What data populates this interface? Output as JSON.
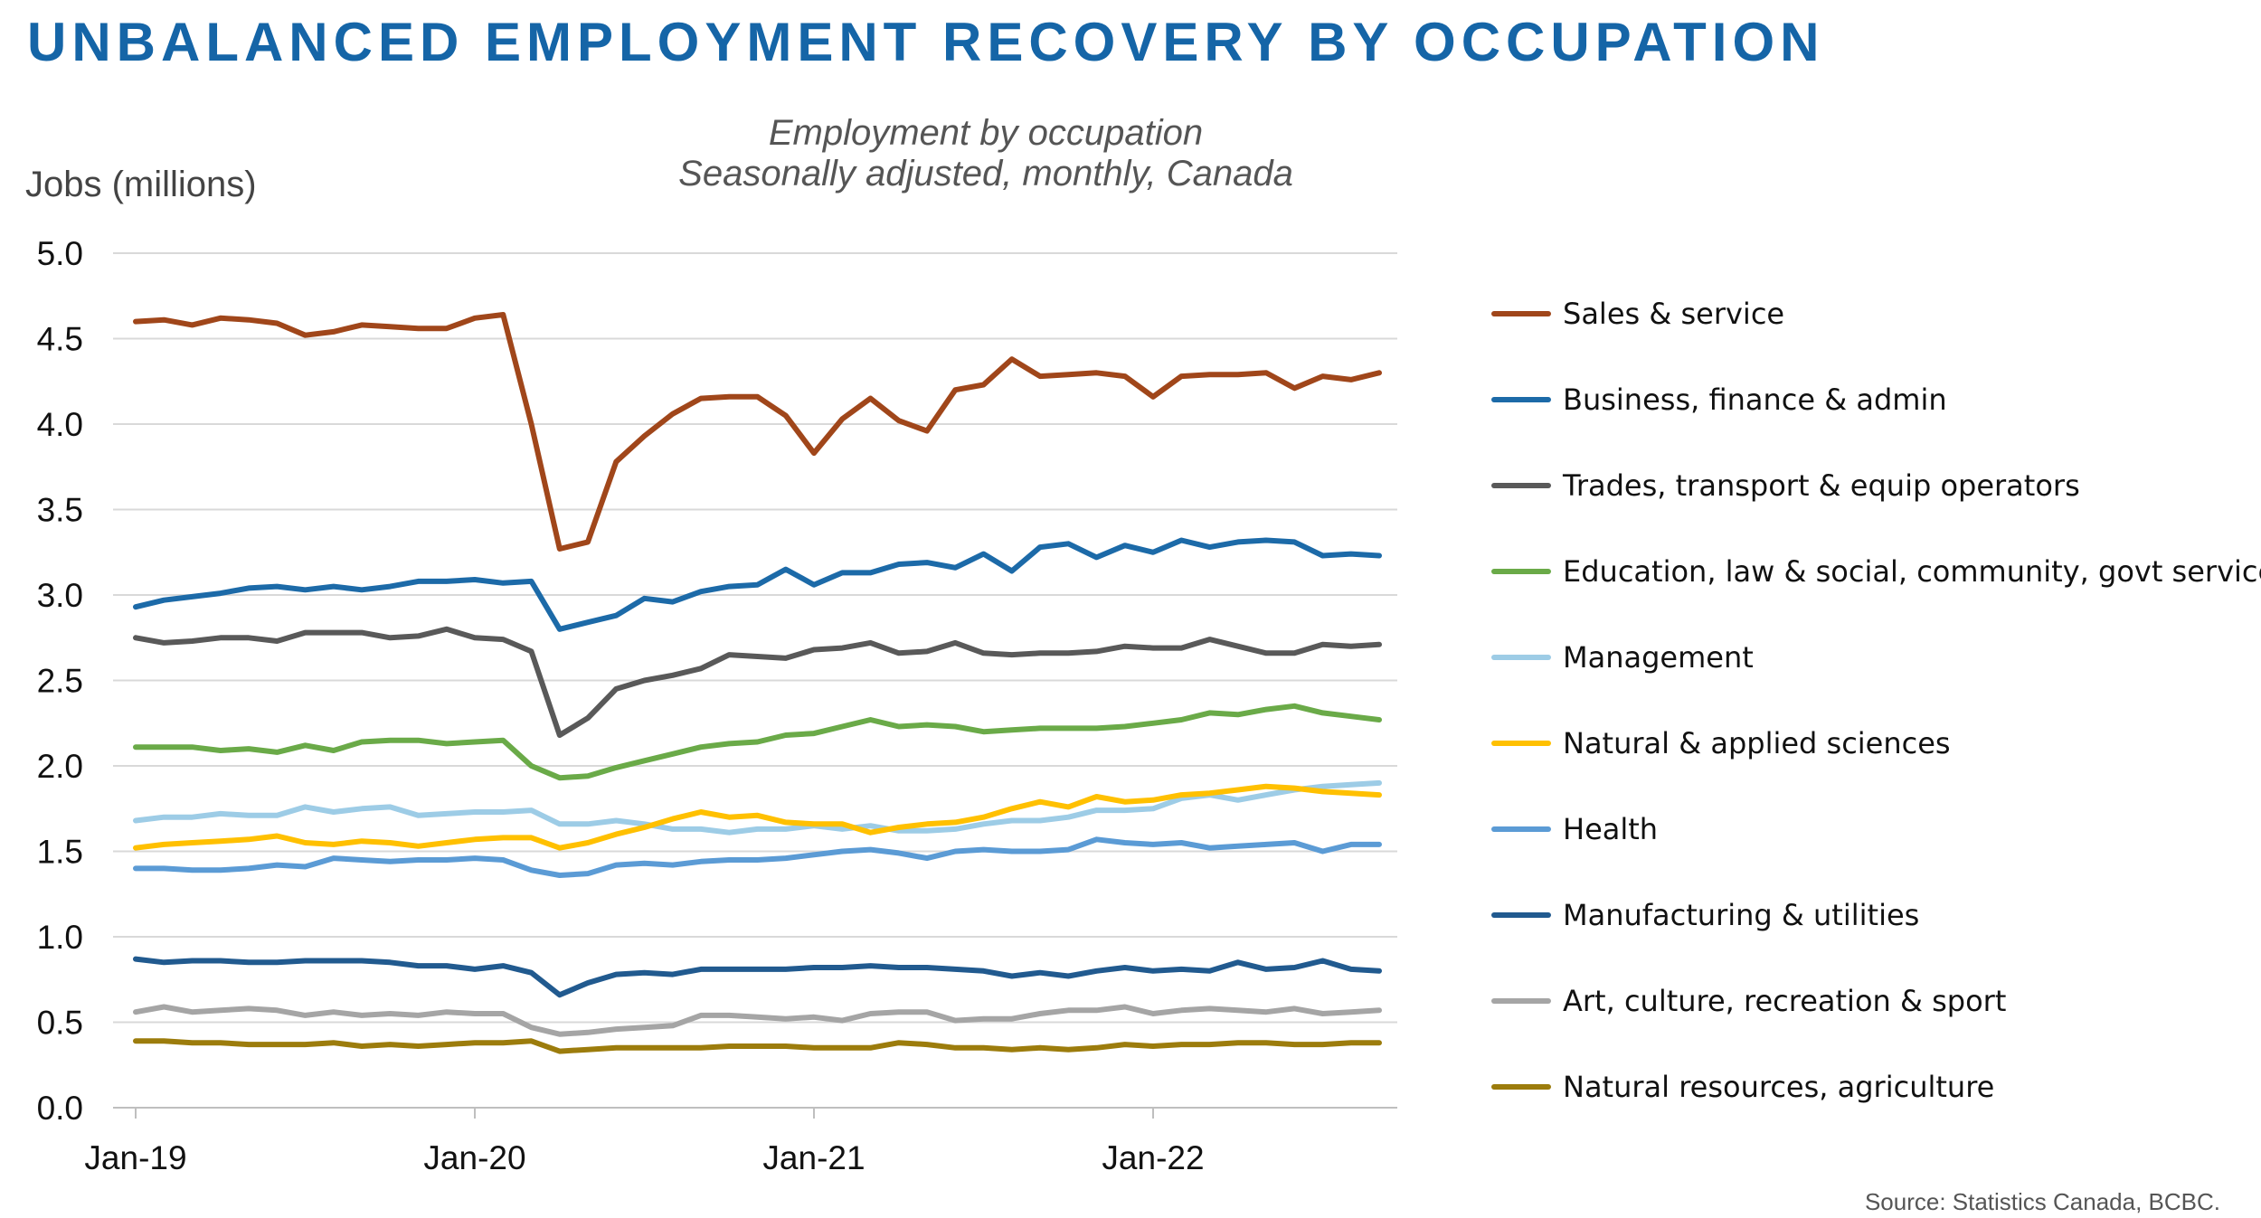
{
  "chart_data": {
    "type": "line",
    "title": "UNBALANCED EMPLOYMENT RECOVERY BY OCCUPATION",
    "subtitle_lines": [
      "Employment by occupation",
      "Seasonally adjusted, monthly, Canada"
    ],
    "ylabel": "Jobs (millions)",
    "ylim": [
      0,
      5
    ],
    "yticks": [
      "0.0",
      "0.5",
      "1.0",
      "1.5",
      "2.0",
      "2.5",
      "3.0",
      "3.5",
      "4.0",
      "4.5",
      "5.0"
    ],
    "x_range": [
      "Jan-19",
      "Sep-22"
    ],
    "xticks": [
      "Jan-19",
      "Jan-20",
      "Jan-21",
      "Jan-22"
    ],
    "grid": true,
    "legend_position": "right",
    "source": "Source: Statistics Canada, BCBC.",
    "series": [
      {
        "name": "Sales & service",
        "color": "#a0461a",
        "values": [
          4.6,
          4.61,
          4.58,
          4.62,
          4.61,
          4.59,
          4.52,
          4.54,
          4.58,
          4.57,
          4.56,
          4.56,
          4.62,
          4.64,
          4.0,
          3.27,
          3.31,
          3.78,
          3.93,
          4.06,
          4.15,
          4.16,
          4.16,
          4.05,
          3.83,
          4.03,
          4.15,
          4.02,
          3.96,
          4.2,
          4.23,
          4.38,
          4.28,
          4.29,
          4.3,
          4.28,
          4.16,
          4.28,
          4.29,
          4.29,
          4.3,
          4.21,
          4.28,
          4.26,
          4.3
        ]
      },
      {
        "name": "Business, finance & admin",
        "color": "#1c6aa8",
        "values": [
          2.93,
          2.97,
          2.99,
          3.01,
          3.04,
          3.05,
          3.03,
          3.05,
          3.03,
          3.05,
          3.08,
          3.08,
          3.09,
          3.07,
          3.08,
          2.8,
          2.84,
          2.88,
          2.98,
          2.96,
          3.02,
          3.05,
          3.06,
          3.15,
          3.06,
          3.13,
          3.13,
          3.18,
          3.19,
          3.16,
          3.24,
          3.14,
          3.28,
          3.3,
          3.22,
          3.29,
          3.25,
          3.32,
          3.28,
          3.31,
          3.32,
          3.31,
          3.23,
          3.24,
          3.23
        ]
      },
      {
        "name": "Trades, transport & equip operators",
        "color": "#595959",
        "values": [
          2.75,
          2.72,
          2.73,
          2.75,
          2.75,
          2.73,
          2.78,
          2.78,
          2.78,
          2.75,
          2.76,
          2.8,
          2.75,
          2.74,
          2.67,
          2.18,
          2.28,
          2.45,
          2.5,
          2.53,
          2.57,
          2.65,
          2.64,
          2.63,
          2.68,
          2.69,
          2.72,
          2.66,
          2.67,
          2.72,
          2.66,
          2.65,
          2.66,
          2.66,
          2.67,
          2.7,
          2.69,
          2.69,
          2.74,
          2.7,
          2.66,
          2.66,
          2.71,
          2.7,
          2.71
        ]
      },
      {
        "name": "Education, law & social, community, govt services",
        "color": "#6aaa48",
        "values": [
          2.11,
          2.11,
          2.11,
          2.09,
          2.1,
          2.08,
          2.12,
          2.09,
          2.14,
          2.15,
          2.15,
          2.13,
          2.14,
          2.15,
          2.0,
          1.93,
          1.94,
          1.99,
          2.03,
          2.07,
          2.11,
          2.13,
          2.14,
          2.18,
          2.19,
          2.23,
          2.27,
          2.23,
          2.24,
          2.23,
          2.2,
          2.21,
          2.22,
          2.22,
          2.22,
          2.23,
          2.25,
          2.27,
          2.31,
          2.3,
          2.33,
          2.35,
          2.31,
          2.29,
          2.27
        ]
      },
      {
        "name": "Management",
        "color": "#9dcce6",
        "values": [
          1.68,
          1.7,
          1.7,
          1.72,
          1.71,
          1.71,
          1.76,
          1.73,
          1.75,
          1.76,
          1.71,
          1.72,
          1.73,
          1.73,
          1.74,
          1.66,
          1.66,
          1.68,
          1.66,
          1.63,
          1.63,
          1.61,
          1.63,
          1.63,
          1.65,
          1.63,
          1.65,
          1.62,
          1.62,
          1.63,
          1.66,
          1.68,
          1.68,
          1.7,
          1.74,
          1.74,
          1.75,
          1.81,
          1.83,
          1.8,
          1.83,
          1.86,
          1.88,
          1.89,
          1.9
        ]
      },
      {
        "name": "Natural & applied sciences",
        "color": "#ffc000",
        "values": [
          1.52,
          1.54,
          1.55,
          1.56,
          1.57,
          1.59,
          1.55,
          1.54,
          1.56,
          1.55,
          1.53,
          1.55,
          1.57,
          1.58,
          1.58,
          1.52,
          1.55,
          1.6,
          1.64,
          1.69,
          1.73,
          1.7,
          1.71,
          1.67,
          1.66,
          1.66,
          1.61,
          1.64,
          1.66,
          1.67,
          1.7,
          1.75,
          1.79,
          1.76,
          1.82,
          1.79,
          1.8,
          1.83,
          1.84,
          1.86,
          1.88,
          1.87,
          1.85,
          1.84,
          1.83
        ]
      },
      {
        "name": "Health",
        "color": "#5b9bd5",
        "values": [
          1.4,
          1.4,
          1.39,
          1.39,
          1.4,
          1.42,
          1.41,
          1.46,
          1.45,
          1.44,
          1.45,
          1.45,
          1.46,
          1.45,
          1.39,
          1.36,
          1.37,
          1.42,
          1.43,
          1.42,
          1.44,
          1.45,
          1.45,
          1.46,
          1.48,
          1.5,
          1.51,
          1.49,
          1.46,
          1.5,
          1.51,
          1.5,
          1.5,
          1.51,
          1.57,
          1.55,
          1.54,
          1.55,
          1.52,
          1.53,
          1.54,
          1.55,
          1.5,
          1.54,
          1.54
        ]
      },
      {
        "name": "Manufacturing & utilities",
        "color": "#215a8f",
        "values": [
          0.87,
          0.85,
          0.86,
          0.86,
          0.85,
          0.85,
          0.86,
          0.86,
          0.86,
          0.85,
          0.83,
          0.83,
          0.81,
          0.83,
          0.79,
          0.66,
          0.73,
          0.78,
          0.79,
          0.78,
          0.81,
          0.81,
          0.81,
          0.81,
          0.82,
          0.82,
          0.83,
          0.82,
          0.82,
          0.81,
          0.8,
          0.77,
          0.79,
          0.77,
          0.8,
          0.82,
          0.8,
          0.81,
          0.8,
          0.85,
          0.81,
          0.82,
          0.86,
          0.81,
          0.8
        ]
      },
      {
        "name": "Art, culture, recreation & sport",
        "color": "#a5a5a5",
        "values": [
          0.56,
          0.59,
          0.56,
          0.57,
          0.58,
          0.57,
          0.54,
          0.56,
          0.54,
          0.55,
          0.54,
          0.56,
          0.55,
          0.55,
          0.47,
          0.43,
          0.44,
          0.46,
          0.47,
          0.48,
          0.54,
          0.54,
          0.53,
          0.52,
          0.53,
          0.51,
          0.55,
          0.56,
          0.56,
          0.51,
          0.52,
          0.52,
          0.55,
          0.57,
          0.57,
          0.59,
          0.55,
          0.57,
          0.58,
          0.57,
          0.56,
          0.58,
          0.55,
          0.56,
          0.57
        ]
      },
      {
        "name": "Natural resources, agriculture",
        "color": "#9c7c0c",
        "values": [
          0.39,
          0.39,
          0.38,
          0.38,
          0.37,
          0.37,
          0.37,
          0.38,
          0.36,
          0.37,
          0.36,
          0.37,
          0.38,
          0.38,
          0.39,
          0.33,
          0.34,
          0.35,
          0.35,
          0.35,
          0.35,
          0.36,
          0.36,
          0.36,
          0.35,
          0.35,
          0.35,
          0.38,
          0.37,
          0.35,
          0.35,
          0.34,
          0.35,
          0.34,
          0.35,
          0.37,
          0.36,
          0.37,
          0.37,
          0.38,
          0.38,
          0.37,
          0.37,
          0.38,
          0.38
        ]
      }
    ]
  }
}
